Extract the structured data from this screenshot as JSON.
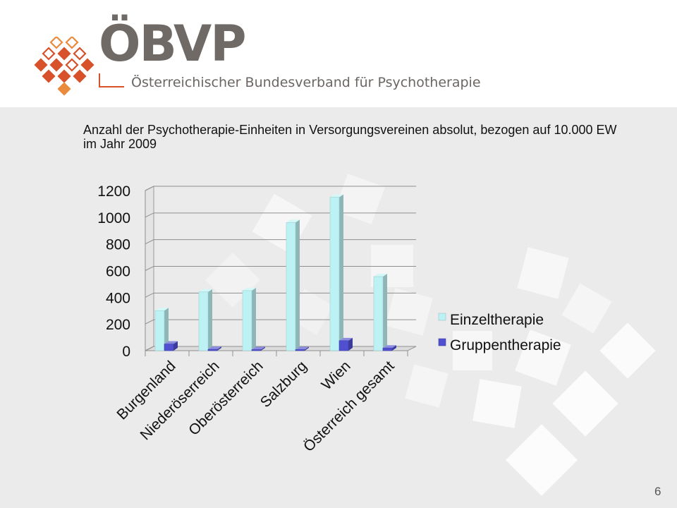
{
  "header": {
    "brand_name": "ÖBVP",
    "brand_subtitle": "Österreichischer Bundesverband für Psychotherapie",
    "colors": {
      "accent": "#d7522b",
      "accent_light": "#e98a3c",
      "text": "#6f6a66"
    }
  },
  "slide": {
    "title": "Anzahl der Psychotherapie-Einheiten in Versorgungsvereinen absolut, bezogen auf 10.000 EW im Jahr 2009",
    "page_number": "6"
  },
  "chart_data": {
    "type": "bar",
    "style": "3d-clustered",
    "categories": [
      "Burgenland",
      "Niederöserreich",
      "Oberösterreich",
      "Salzburg",
      "Wien",
      "Österreich gesamt"
    ],
    "series": [
      {
        "name": "Einzeltherapie",
        "color": "#bdf2f4",
        "values": [
          300,
          440,
          450,
          960,
          1150,
          555
        ]
      },
      {
        "name": "Gruppentherapie",
        "color": "#4f4fd0",
        "values": [
          50,
          10,
          8,
          8,
          75,
          20
        ]
      }
    ],
    "y_ticks": [
      0,
      200,
      400,
      600,
      800,
      1000,
      1200
    ],
    "ylim": [
      0,
      1200
    ],
    "grid": true,
    "legend_position": "right"
  }
}
